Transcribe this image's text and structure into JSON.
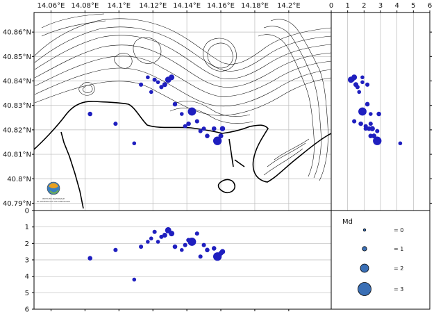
{
  "map": {
    "lon_ticks": [
      "14.06°E",
      "14.08°E",
      "14.1°E",
      "14.12°E",
      "14.14°E",
      "14.16°E",
      "14.18°E",
      "14.2°E"
    ],
    "lat_ticks": [
      "40.86°N",
      "40.85°N",
      "40.84°N",
      "40.83°N",
      "40.82°N",
      "40.81°N",
      "40.8°N",
      "40.79°N"
    ],
    "lon_range": [
      14.05,
      14.225
    ],
    "lat_range": [
      40.787,
      40.868
    ],
    "logo_text_1": "ISTITUTO NAZIONALE",
    "logo_text_2": "DI GEOFISICA E VULCANOLOGIA"
  },
  "depth_axis_ticks": [
    "0",
    "1",
    "2",
    "3",
    "4",
    "5",
    "6"
  ],
  "depth_range": [
    0,
    6
  ],
  "side_axis_ticks": [
    "0",
    "1",
    "2",
    "3",
    "4",
    "5",
    "6"
  ],
  "legend": {
    "title": "Md",
    "items": [
      {
        "label": "= 0",
        "md": 0
      },
      {
        "label": "= 1",
        "md": 1
      },
      {
        "label": "= 2",
        "md": 2
      },
      {
        "label": "= 3",
        "md": 3
      }
    ]
  },
  "colors": {
    "marker": "#1f1fbf",
    "legend_marker": "#3a6fb5",
    "grid": "#bbbbbb"
  },
  "events": [
    {
      "lon": 14.083,
      "lat": 40.8265,
      "depth": 2.9,
      "md": 0.7
    },
    {
      "lon": 14.098,
      "lat": 40.8225,
      "depth": 2.4,
      "md": 0.6
    },
    {
      "lon": 14.113,
      "lat": 40.8385,
      "depth": 2.2,
      "md": 0.6
    },
    {
      "lon": 14.117,
      "lat": 40.8415,
      "depth": 1.9,
      "md": 0.5
    },
    {
      "lon": 14.119,
      "lat": 40.8355,
      "depth": 1.7,
      "md": 0.5
    },
    {
      "lon": 14.121,
      "lat": 40.8405,
      "depth": 1.3,
      "md": 0.6
    },
    {
      "lon": 14.123,
      "lat": 40.8395,
      "depth": 1.9,
      "md": 0.5
    },
    {
      "lon": 14.125,
      "lat": 40.8375,
      "depth": 1.6,
      "md": 0.6
    },
    {
      "lon": 14.127,
      "lat": 40.8385,
      "depth": 1.5,
      "md": 0.8
    },
    {
      "lon": 14.129,
      "lat": 40.8405,
      "depth": 1.2,
      "md": 1.2
    },
    {
      "lon": 14.131,
      "lat": 40.8415,
      "depth": 1.4,
      "md": 1.0
    },
    {
      "lon": 14.133,
      "lat": 40.8305,
      "depth": 2.2,
      "md": 0.7
    },
    {
      "lon": 14.137,
      "lat": 40.8265,
      "depth": 2.4,
      "md": 0.5
    },
    {
      "lon": 14.139,
      "lat": 40.8215,
      "depth": 2.1,
      "md": 0.6
    },
    {
      "lon": 14.141,
      "lat": 40.8225,
      "depth": 1.8,
      "md": 0.7
    },
    {
      "lon": 14.143,
      "lat": 40.8275,
      "depth": 1.9,
      "md": 1.8
    },
    {
      "lon": 14.146,
      "lat": 40.8235,
      "depth": 1.4,
      "md": 0.6
    },
    {
      "lon": 14.148,
      "lat": 40.8195,
      "depth": 2.8,
      "md": 0.6
    },
    {
      "lon": 14.15,
      "lat": 40.8205,
      "depth": 2.1,
      "md": 0.6
    },
    {
      "lon": 14.152,
      "lat": 40.8175,
      "depth": 2.4,
      "md": 0.7
    },
    {
      "lon": 14.156,
      "lat": 40.8205,
      "depth": 2.3,
      "md": 0.7
    },
    {
      "lon": 14.158,
      "lat": 40.8155,
      "depth": 2.8,
      "md": 1.9
    },
    {
      "lon": 14.16,
      "lat": 40.8175,
      "depth": 2.6,
      "md": 0.8
    },
    {
      "lon": 14.161,
      "lat": 40.8205,
      "depth": 2.5,
      "md": 0.9
    },
    {
      "lon": 14.109,
      "lat": 40.8145,
      "depth": 4.2,
      "md": 0.5
    }
  ]
}
